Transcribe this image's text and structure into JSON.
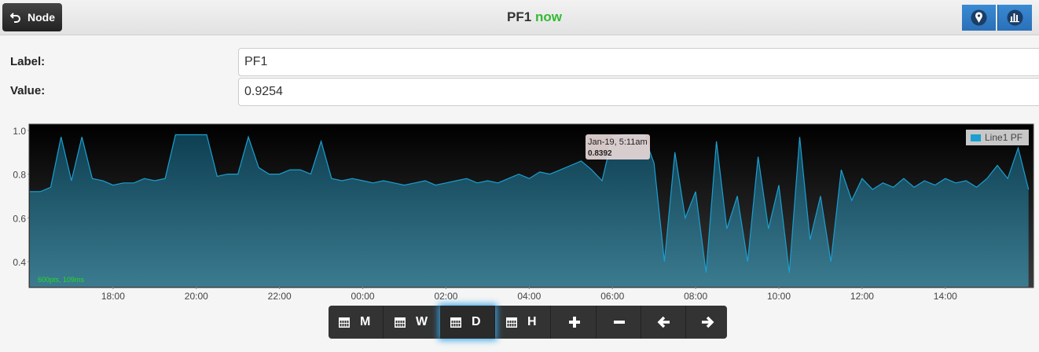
{
  "header": {
    "button": "Node",
    "title": "PF1",
    "status": "now"
  },
  "fields": [
    {
      "label": "Label:",
      "value": "PF1"
    },
    {
      "label": "Value:",
      "value": "0.9254"
    }
  ],
  "chart_data": {
    "type": "area",
    "grid": false,
    "legend": "top-right",
    "x": [
      16,
      16.25,
      16.5,
      16.75,
      17,
      17.25,
      17.5,
      17.75,
      18,
      18.25,
      18.5,
      18.75,
      19,
      19.25,
      19.5,
      19.75,
      20,
      20.25,
      20.5,
      20.75,
      21,
      21.25,
      21.5,
      21.75,
      22,
      22.25,
      22.5,
      22.75,
      23,
      23.25,
      23.5,
      23.75,
      24,
      24.25,
      24.5,
      24.75,
      25,
      25.25,
      25.5,
      25.75,
      26,
      26.25,
      26.5,
      26.75,
      27,
      27.25,
      27.5,
      27.75,
      28,
      28.25,
      28.5,
      28.75,
      29,
      29.25,
      29.5,
      29.75,
      30,
      30.25,
      30.5,
      30.75,
      31,
      31.25,
      31.5,
      31.75,
      32,
      32.25,
      32.5,
      32.75,
      33,
      33.25,
      33.5,
      33.75,
      34,
      34.25,
      34.5,
      34.75,
      35,
      35.25,
      35.5,
      35.75,
      36,
      36.25,
      36.5,
      36.75,
      37,
      37.25,
      37.5,
      37.75,
      38,
      38.25,
      38.5,
      38.75,
      39,
      39.25,
      39.5,
      39.75,
      40
    ],
    "series": [
      {
        "name": "Line1 PF",
        "color": "#1a9fd0",
        "values": [
          0.72,
          0.72,
          0.74,
          0.97,
          0.77,
          0.97,
          0.78,
          0.77,
          0.75,
          0.76,
          0.76,
          0.78,
          0.77,
          0.78,
          0.98,
          0.98,
          0.98,
          0.98,
          0.79,
          0.8,
          0.8,
          0.97,
          0.83,
          0.8,
          0.8,
          0.82,
          0.82,
          0.8,
          0.95,
          0.78,
          0.77,
          0.78,
          0.77,
          0.76,
          0.77,
          0.76,
          0.75,
          0.76,
          0.77,
          0.75,
          0.76,
          0.77,
          0.78,
          0.76,
          0.77,
          0.76,
          0.78,
          0.8,
          0.78,
          0.81,
          0.8,
          0.82,
          0.84,
          0.86,
          0.82,
          0.77,
          0.97,
          0.98,
          0.98,
          0.98,
          0.85,
          0.4,
          0.9,
          0.6,
          0.72,
          0.35,
          0.95,
          0.55,
          0.7,
          0.4,
          0.88,
          0.55,
          0.75,
          0.35,
          0.97,
          0.5,
          0.7,
          0.4,
          0.82,
          0.68,
          0.78,
          0.73,
          0.76,
          0.74,
          0.78,
          0.74,
          0.77,
          0.75,
          0.78,
          0.76,
          0.77,
          0.74,
          0.78,
          0.84,
          0.78,
          0.92,
          0.73
        ]
      }
    ],
    "xlim": [
      16,
      40.1
    ],
    "xticks": [
      {
        "value": 18,
        "label": "18:00"
      },
      {
        "value": 20,
        "label": "20:00"
      },
      {
        "value": 22,
        "label": "22:00"
      },
      {
        "value": 24,
        "label": "00:00"
      },
      {
        "value": 26,
        "label": "02:00"
      },
      {
        "value": 28,
        "label": "04:00"
      },
      {
        "value": 30,
        "label": "06:00"
      },
      {
        "value": 32,
        "label": "08:00"
      },
      {
        "value": 34,
        "label": "10:00"
      },
      {
        "value": 36,
        "label": "12:00"
      },
      {
        "value": 38,
        "label": "14:00"
      }
    ],
    "ylim": [
      0.285,
      1.025
    ],
    "yticks": [
      0.4,
      0.6,
      0.8,
      {
        "value": 1,
        "label": "1.0"
      }
    ],
    "tooltip": {
      "label": "Jan-19, 5:11am",
      "value": 0.8392
    },
    "stats": "600pts, 109ms"
  },
  "toolbar": [
    "M",
    "W",
    "D",
    "H"
  ]
}
